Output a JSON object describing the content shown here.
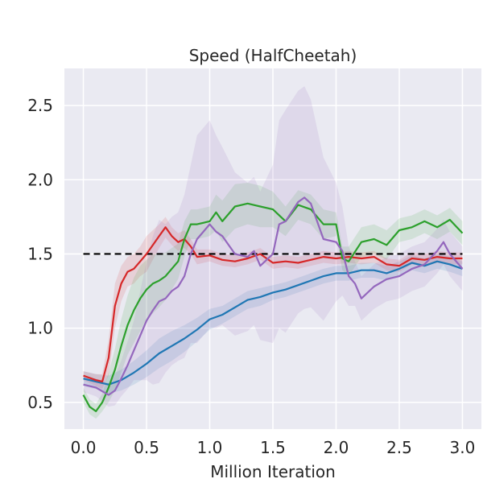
{
  "chart_data": {
    "type": "line",
    "title": "Speed (HalfCheetah)",
    "xlabel": "Million Iteration",
    "ylabel": "",
    "xlim": [
      -0.15,
      3.15
    ],
    "ylim": [
      0.32,
      2.75
    ],
    "xticks": [
      0.0,
      0.5,
      1.0,
      1.5,
      2.0,
      2.5,
      3.0
    ],
    "xtick_labels": [
      "0.0",
      "0.5",
      "1.0",
      "1.5",
      "2.0",
      "2.5",
      "3.0"
    ],
    "yticks": [
      0.5,
      1.0,
      1.5,
      2.0,
      2.5
    ],
    "ytick_labels": [
      "0.5",
      "1.0",
      "1.5",
      "2.0",
      "2.5"
    ],
    "grid": true,
    "background": "#eaeaf2",
    "reference_line": {
      "y": 1.5,
      "x": [
        0.0,
        3.0
      ],
      "style": "dashed",
      "color": "#000000"
    },
    "series": [
      {
        "color": "#1f77b4",
        "x": [
          0.0,
          0.1,
          0.2,
          0.3,
          0.4,
          0.5,
          0.6,
          0.7,
          0.8,
          0.9,
          1.0,
          1.1,
          1.2,
          1.3,
          1.4,
          1.5,
          1.6,
          1.7,
          1.8,
          1.9,
          2.0,
          2.1,
          2.2,
          2.3,
          2.4,
          2.5,
          2.6,
          2.7,
          2.8,
          2.9,
          3.0
        ],
        "values": [
          0.66,
          0.64,
          0.62,
          0.65,
          0.7,
          0.76,
          0.83,
          0.88,
          0.93,
          0.99,
          1.06,
          1.09,
          1.14,
          1.19,
          1.21,
          1.24,
          1.26,
          1.29,
          1.32,
          1.35,
          1.37,
          1.37,
          1.39,
          1.39,
          1.37,
          1.4,
          1.44,
          1.42,
          1.45,
          1.43,
          1.4
        ],
        "band": [
          0.05,
          0.05,
          0.06,
          0.07,
          0.08,
          0.09,
          0.1,
          0.1,
          0.09,
          0.08,
          0.07,
          0.06,
          0.06,
          0.06,
          0.06,
          0.05,
          0.05,
          0.05,
          0.05,
          0.05,
          0.05,
          0.05,
          0.05,
          0.05,
          0.05,
          0.05,
          0.05,
          0.05,
          0.05,
          0.05,
          0.05
        ]
      },
      {
        "color": "#d62728",
        "x": [
          0.0,
          0.1,
          0.15,
          0.2,
          0.25,
          0.3,
          0.35,
          0.4,
          0.45,
          0.5,
          0.55,
          0.6,
          0.65,
          0.7,
          0.75,
          0.8,
          0.85,
          0.9,
          1.0,
          1.1,
          1.2,
          1.3,
          1.4,
          1.5,
          1.6,
          1.7,
          1.8,
          1.9,
          2.0,
          2.1,
          2.2,
          2.3,
          2.4,
          2.5,
          2.6,
          2.7,
          2.8,
          2.9,
          3.0
        ],
        "values": [
          0.68,
          0.65,
          0.64,
          0.8,
          1.15,
          1.3,
          1.38,
          1.4,
          1.45,
          1.5,
          1.56,
          1.62,
          1.68,
          1.62,
          1.58,
          1.6,
          1.55,
          1.48,
          1.49,
          1.46,
          1.45,
          1.47,
          1.5,
          1.44,
          1.45,
          1.44,
          1.46,
          1.48,
          1.47,
          1.48,
          1.47,
          1.48,
          1.43,
          1.42,
          1.47,
          1.46,
          1.48,
          1.47,
          1.47
        ],
        "band": [
          0.03,
          0.04,
          0.05,
          0.12,
          0.15,
          0.12,
          0.1,
          0.1,
          0.1,
          0.12,
          0.1,
          0.08,
          0.07,
          0.06,
          0.06,
          0.06,
          0.05,
          0.05,
          0.04,
          0.04,
          0.04,
          0.04,
          0.04,
          0.04,
          0.04,
          0.04,
          0.04,
          0.04,
          0.04,
          0.04,
          0.04,
          0.04,
          0.04,
          0.04,
          0.04,
          0.04,
          0.04,
          0.04,
          0.04
        ]
      },
      {
        "color": "#2ca02c",
        "x": [
          0.0,
          0.05,
          0.1,
          0.15,
          0.2,
          0.25,
          0.3,
          0.35,
          0.4,
          0.45,
          0.5,
          0.55,
          0.6,
          0.65,
          0.7,
          0.75,
          0.8,
          0.85,
          0.9,
          1.0,
          1.05,
          1.1,
          1.2,
          1.3,
          1.4,
          1.5,
          1.6,
          1.7,
          1.8,
          1.9,
          2.0,
          2.05,
          2.1,
          2.2,
          2.3,
          2.4,
          2.5,
          2.6,
          2.7,
          2.8,
          2.9,
          3.0
        ],
        "values": [
          0.55,
          0.47,
          0.44,
          0.5,
          0.6,
          0.72,
          0.88,
          1.02,
          1.12,
          1.2,
          1.26,
          1.3,
          1.32,
          1.35,
          1.4,
          1.45,
          1.6,
          1.7,
          1.7,
          1.72,
          1.78,
          1.72,
          1.82,
          1.84,
          1.82,
          1.8,
          1.72,
          1.83,
          1.8,
          1.7,
          1.7,
          1.47,
          1.45,
          1.58,
          1.6,
          1.56,
          1.66,
          1.68,
          1.72,
          1.68,
          1.73,
          1.64
        ],
        "band": [
          0.05,
          0.05,
          0.05,
          0.06,
          0.1,
          0.14,
          0.18,
          0.2,
          0.22,
          0.22,
          0.2,
          0.2,
          0.18,
          0.16,
          0.14,
          0.12,
          0.12,
          0.1,
          0.1,
          0.1,
          0.12,
          0.14,
          0.15,
          0.14,
          0.14,
          0.12,
          0.1,
          0.1,
          0.1,
          0.1,
          0.08,
          0.08,
          0.1,
          0.1,
          0.1,
          0.1,
          0.08,
          0.08,
          0.08,
          0.08,
          0.08,
          0.08
        ]
      },
      {
        "color": "#9467bd",
        "x": [
          0.0,
          0.1,
          0.2,
          0.25,
          0.3,
          0.35,
          0.4,
          0.45,
          0.5,
          0.55,
          0.6,
          0.65,
          0.7,
          0.75,
          0.8,
          0.85,
          0.9,
          1.0,
          1.05,
          1.1,
          1.2,
          1.3,
          1.35,
          1.4,
          1.5,
          1.55,
          1.6,
          1.7,
          1.75,
          1.8,
          1.9,
          2.0,
          2.05,
          2.1,
          2.15,
          2.2,
          2.3,
          2.4,
          2.5,
          2.6,
          2.7,
          2.8,
          2.85,
          2.9,
          3.0
        ],
        "values": [
          0.62,
          0.6,
          0.55,
          0.58,
          0.66,
          0.75,
          0.85,
          0.95,
          1.05,
          1.12,
          1.18,
          1.2,
          1.25,
          1.28,
          1.35,
          1.5,
          1.6,
          1.7,
          1.65,
          1.62,
          1.5,
          1.48,
          1.52,
          1.42,
          1.5,
          1.7,
          1.72,
          1.85,
          1.88,
          1.84,
          1.6,
          1.58,
          1.52,
          1.35,
          1.3,
          1.2,
          1.28,
          1.33,
          1.35,
          1.4,
          1.43,
          1.52,
          1.58,
          1.5,
          1.4
        ],
        "band": [
          0.05,
          0.06,
          0.08,
          0.1,
          0.12,
          0.16,
          0.2,
          0.3,
          0.4,
          0.5,
          0.55,
          0.5,
          0.5,
          0.5,
          0.55,
          0.6,
          0.7,
          0.7,
          0.65,
          0.6,
          0.55,
          0.5,
          0.5,
          0.5,
          0.6,
          0.7,
          0.75,
          0.75,
          0.75,
          0.7,
          0.55,
          0.4,
          0.3,
          0.2,
          0.15,
          0.15,
          0.15,
          0.15,
          0.15,
          0.15,
          0.15,
          0.15,
          0.15,
          0.15,
          0.15
        ]
      }
    ]
  }
}
